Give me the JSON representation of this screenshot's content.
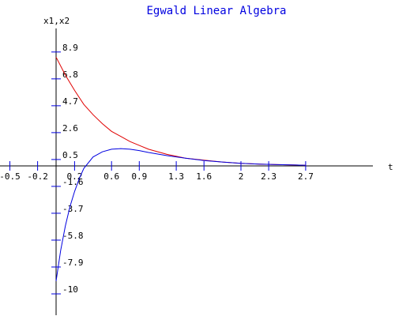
{
  "chart_data": {
    "type": "line",
    "title": "Egwald Linear Algebra",
    "xlabel": "t",
    "ylabel": "x1,x2",
    "xlim": [
      -0.62,
      3.05
    ],
    "ylim": [
      -10.9,
      9.6
    ],
    "grid": false,
    "x_ticks": [
      -0.5,
      -0.2,
      0.2,
      0.6,
      0.9,
      1.3,
      1.6,
      2,
      2.3,
      2.7
    ],
    "x_tick_labels": [
      "-0.5",
      "-0.2",
      "0.2",
      "0.6",
      "0.9",
      "1.3",
      "1.6",
      "2",
      "2.3",
      "2.7"
    ],
    "y_ticks": [
      8.9,
      6.8,
      4.7,
      2.6,
      0.5,
      -1.6,
      -3.7,
      -5.8,
      -7.9,
      -10
    ],
    "y_tick_labels": [
      "8.9",
      "6.8",
      "4.7",
      "2.6",
      "0.5",
      "-1.6",
      "-3.7",
      "-5.8",
      "-7.9",
      "-10"
    ],
    "series": [
      {
        "color": "#e00000",
        "x": [
          0.0,
          0.1,
          0.2,
          0.3,
          0.4,
          0.5,
          0.6,
          0.7,
          0.8,
          0.9,
          1.0,
          1.2,
          1.4,
          1.6,
          1.8,
          2.0,
          2.2,
          2.4,
          2.6,
          2.7
        ],
        "y": [
          8.5,
          7.1,
          5.9,
          4.8,
          4.0,
          3.3,
          2.7,
          2.3,
          1.9,
          1.6,
          1.3,
          0.9,
          0.6,
          0.45,
          0.3,
          0.2,
          0.14,
          0.1,
          0.07,
          0.05
        ]
      },
      {
        "color": "#0000e0",
        "x": [
          0.0,
          0.05,
          0.1,
          0.15,
          0.2,
          0.25,
          0.3,
          0.4,
          0.5,
          0.6,
          0.7,
          0.8,
          0.9,
          1.0,
          1.2,
          1.4,
          1.6,
          1.8,
          2.0,
          2.2,
          2.4,
          2.6,
          2.7
        ],
        "y": [
          -9.0,
          -6.6,
          -4.7,
          -3.2,
          -2.0,
          -1.0,
          -0.2,
          0.7,
          1.1,
          1.3,
          1.35,
          1.3,
          1.2,
          1.05,
          0.8,
          0.6,
          0.42,
          0.3,
          0.2,
          0.14,
          0.1,
          0.07,
          0.05
        ]
      }
    ]
  }
}
